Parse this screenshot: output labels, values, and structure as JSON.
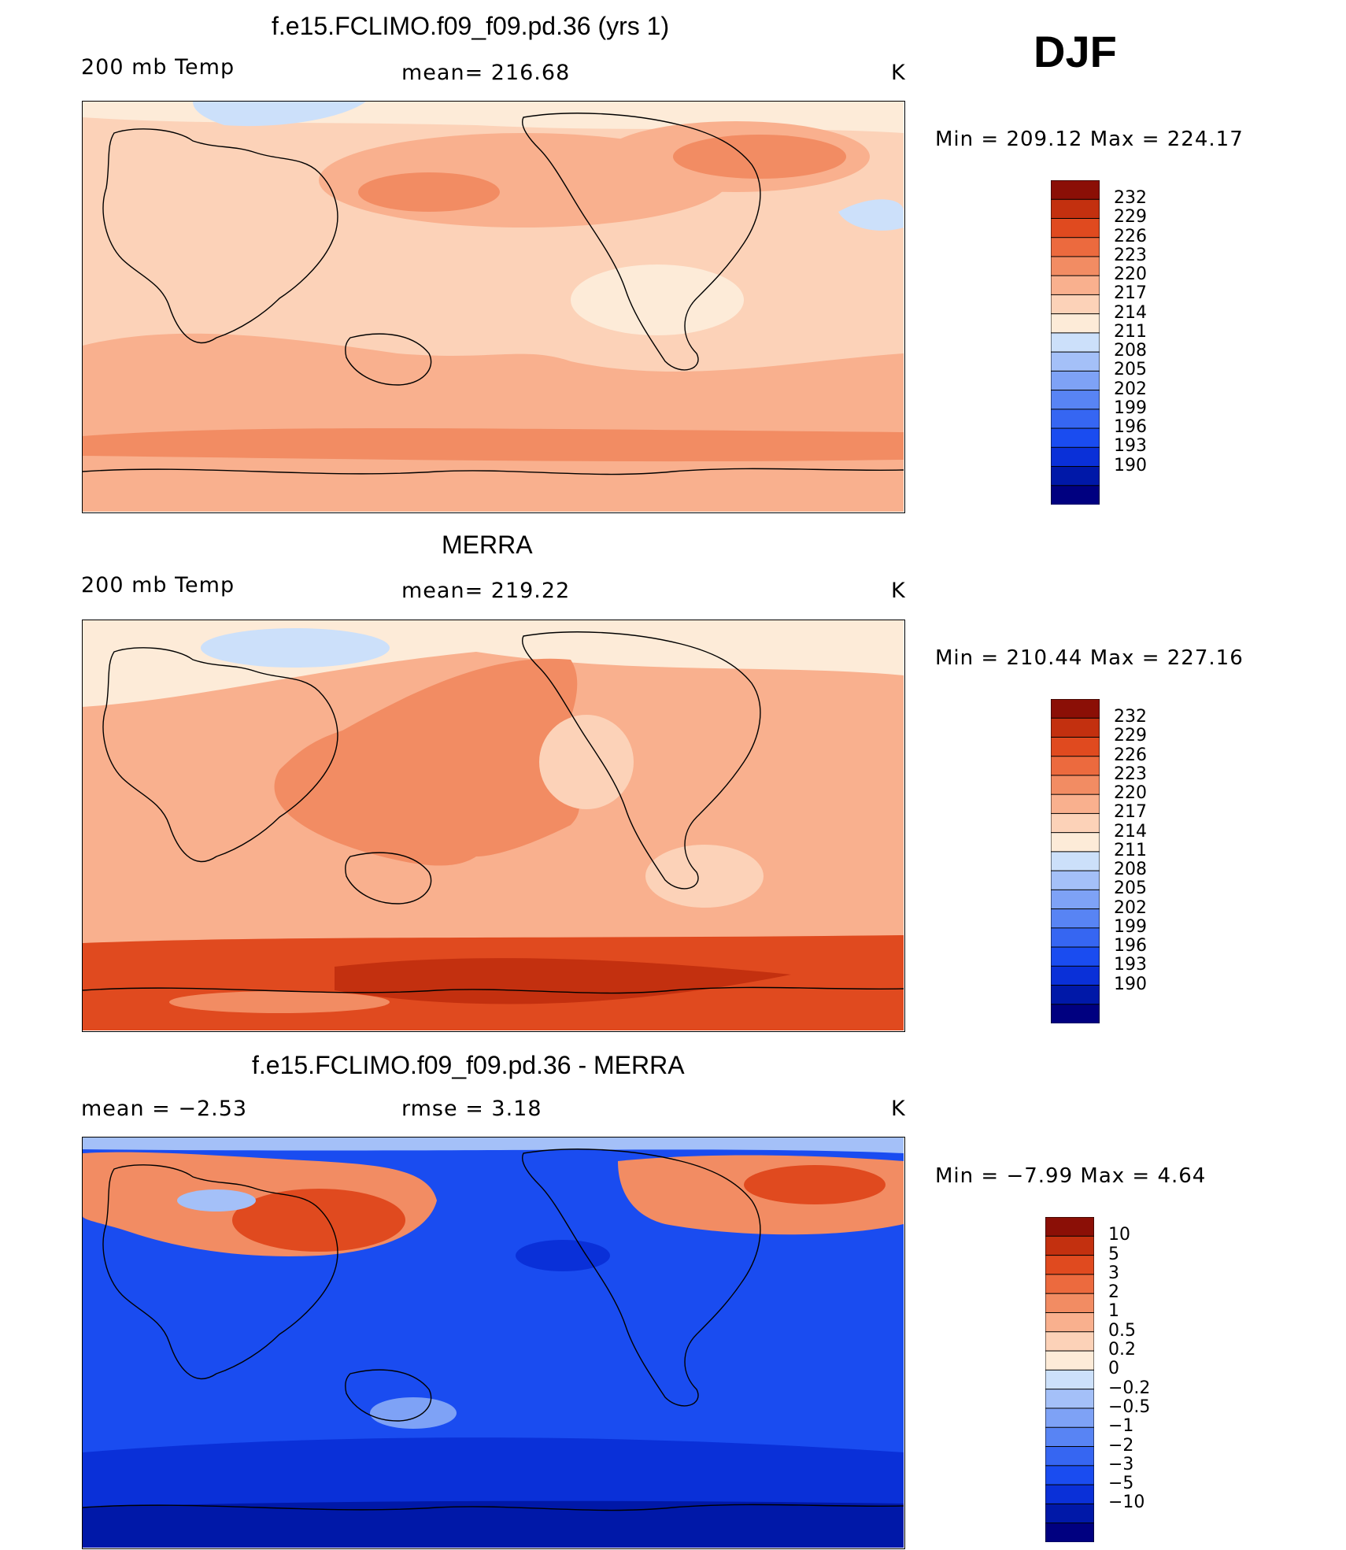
{
  "season": "DJF",
  "units": "K",
  "palettes": {
    "abs": [
      "#000080",
      "#0018a8",
      "#0a30d8",
      "#1a4cf0",
      "#3666f2",
      "#5884f4",
      "#7ea2f6",
      "#a4c0f8",
      "#cce0fa",
      "#fdebd8",
      "#fcd2b8",
      "#f9b08e",
      "#f28c63",
      "#ec6a3e",
      "#e04a1f",
      "#c3300f",
      "#8b0f06"
    ],
    "diff": [
      "#000080",
      "#0018a8",
      "#0a30d8",
      "#1a4cf0",
      "#3666f2",
      "#5884f4",
      "#7ea2f6",
      "#a4c0f8",
      "#cce0fa",
      "#fdebd8",
      "#fcd2b8",
      "#f9b08e",
      "#f28c63",
      "#ec6a3e",
      "#e04a1f",
      "#c3300f",
      "#8b0f06"
    ]
  },
  "panels": [
    {
      "title": "f.e15.FCLIMO.f09_f09.pd.36 (yrs 1)",
      "left": "200 mb Temp",
      "center": "mean=  216.68",
      "right": "K",
      "minmax": "Min  =  209.12  Max  =  224.17"
    },
    {
      "title": "MERRA",
      "left": "200 mb Temp",
      "center": "mean=  219.22",
      "right": "K",
      "minmax": "Min  =  210.44  Max  =  227.16"
    },
    {
      "title": "f.e15.FCLIMO.f09_f09.pd.36 - MERRA",
      "left": "mean  =     −2.53",
      "center": "rmse  =      3.18",
      "right": "K",
      "minmax": "Min  =    −7.99  Max  =      4.64"
    }
  ],
  "chart_data": [
    {
      "type": "heatmap",
      "title": "f.e15.FCLIMO.f09_f09.pd.36 (yrs 1)",
      "variable": "200 mb Temp",
      "units": "K",
      "mean": 216.68,
      "min": 209.12,
      "max": 224.17,
      "colorbar_levels": [
        "232",
        "229",
        "226",
        "223",
        "220",
        "217",
        "214",
        "211",
        "208",
        "205",
        "202",
        "199",
        "196",
        "193",
        "190"
      ]
    },
    {
      "type": "heatmap",
      "title": "MERRA",
      "variable": "200 mb Temp",
      "units": "K",
      "mean": 219.22,
      "min": 210.44,
      "max": 227.16,
      "colorbar_levels": [
        "232",
        "229",
        "226",
        "223",
        "220",
        "217",
        "214",
        "211",
        "208",
        "205",
        "202",
        "199",
        "196",
        "193",
        "190"
      ]
    },
    {
      "type": "heatmap",
      "title": "f.e15.FCLIMO.f09_f09.pd.36 - MERRA",
      "units": "K",
      "mean": -2.53,
      "rmse": 3.18,
      "min": -7.99,
      "max": 4.64,
      "colorbar_levels": [
        "10",
        "5",
        "3",
        "2",
        "1",
        "0.5",
        "0.2",
        "0",
        "−0.2",
        "−0.5",
        "−1",
        "−2",
        "−3",
        "−5",
        "−10"
      ]
    }
  ]
}
